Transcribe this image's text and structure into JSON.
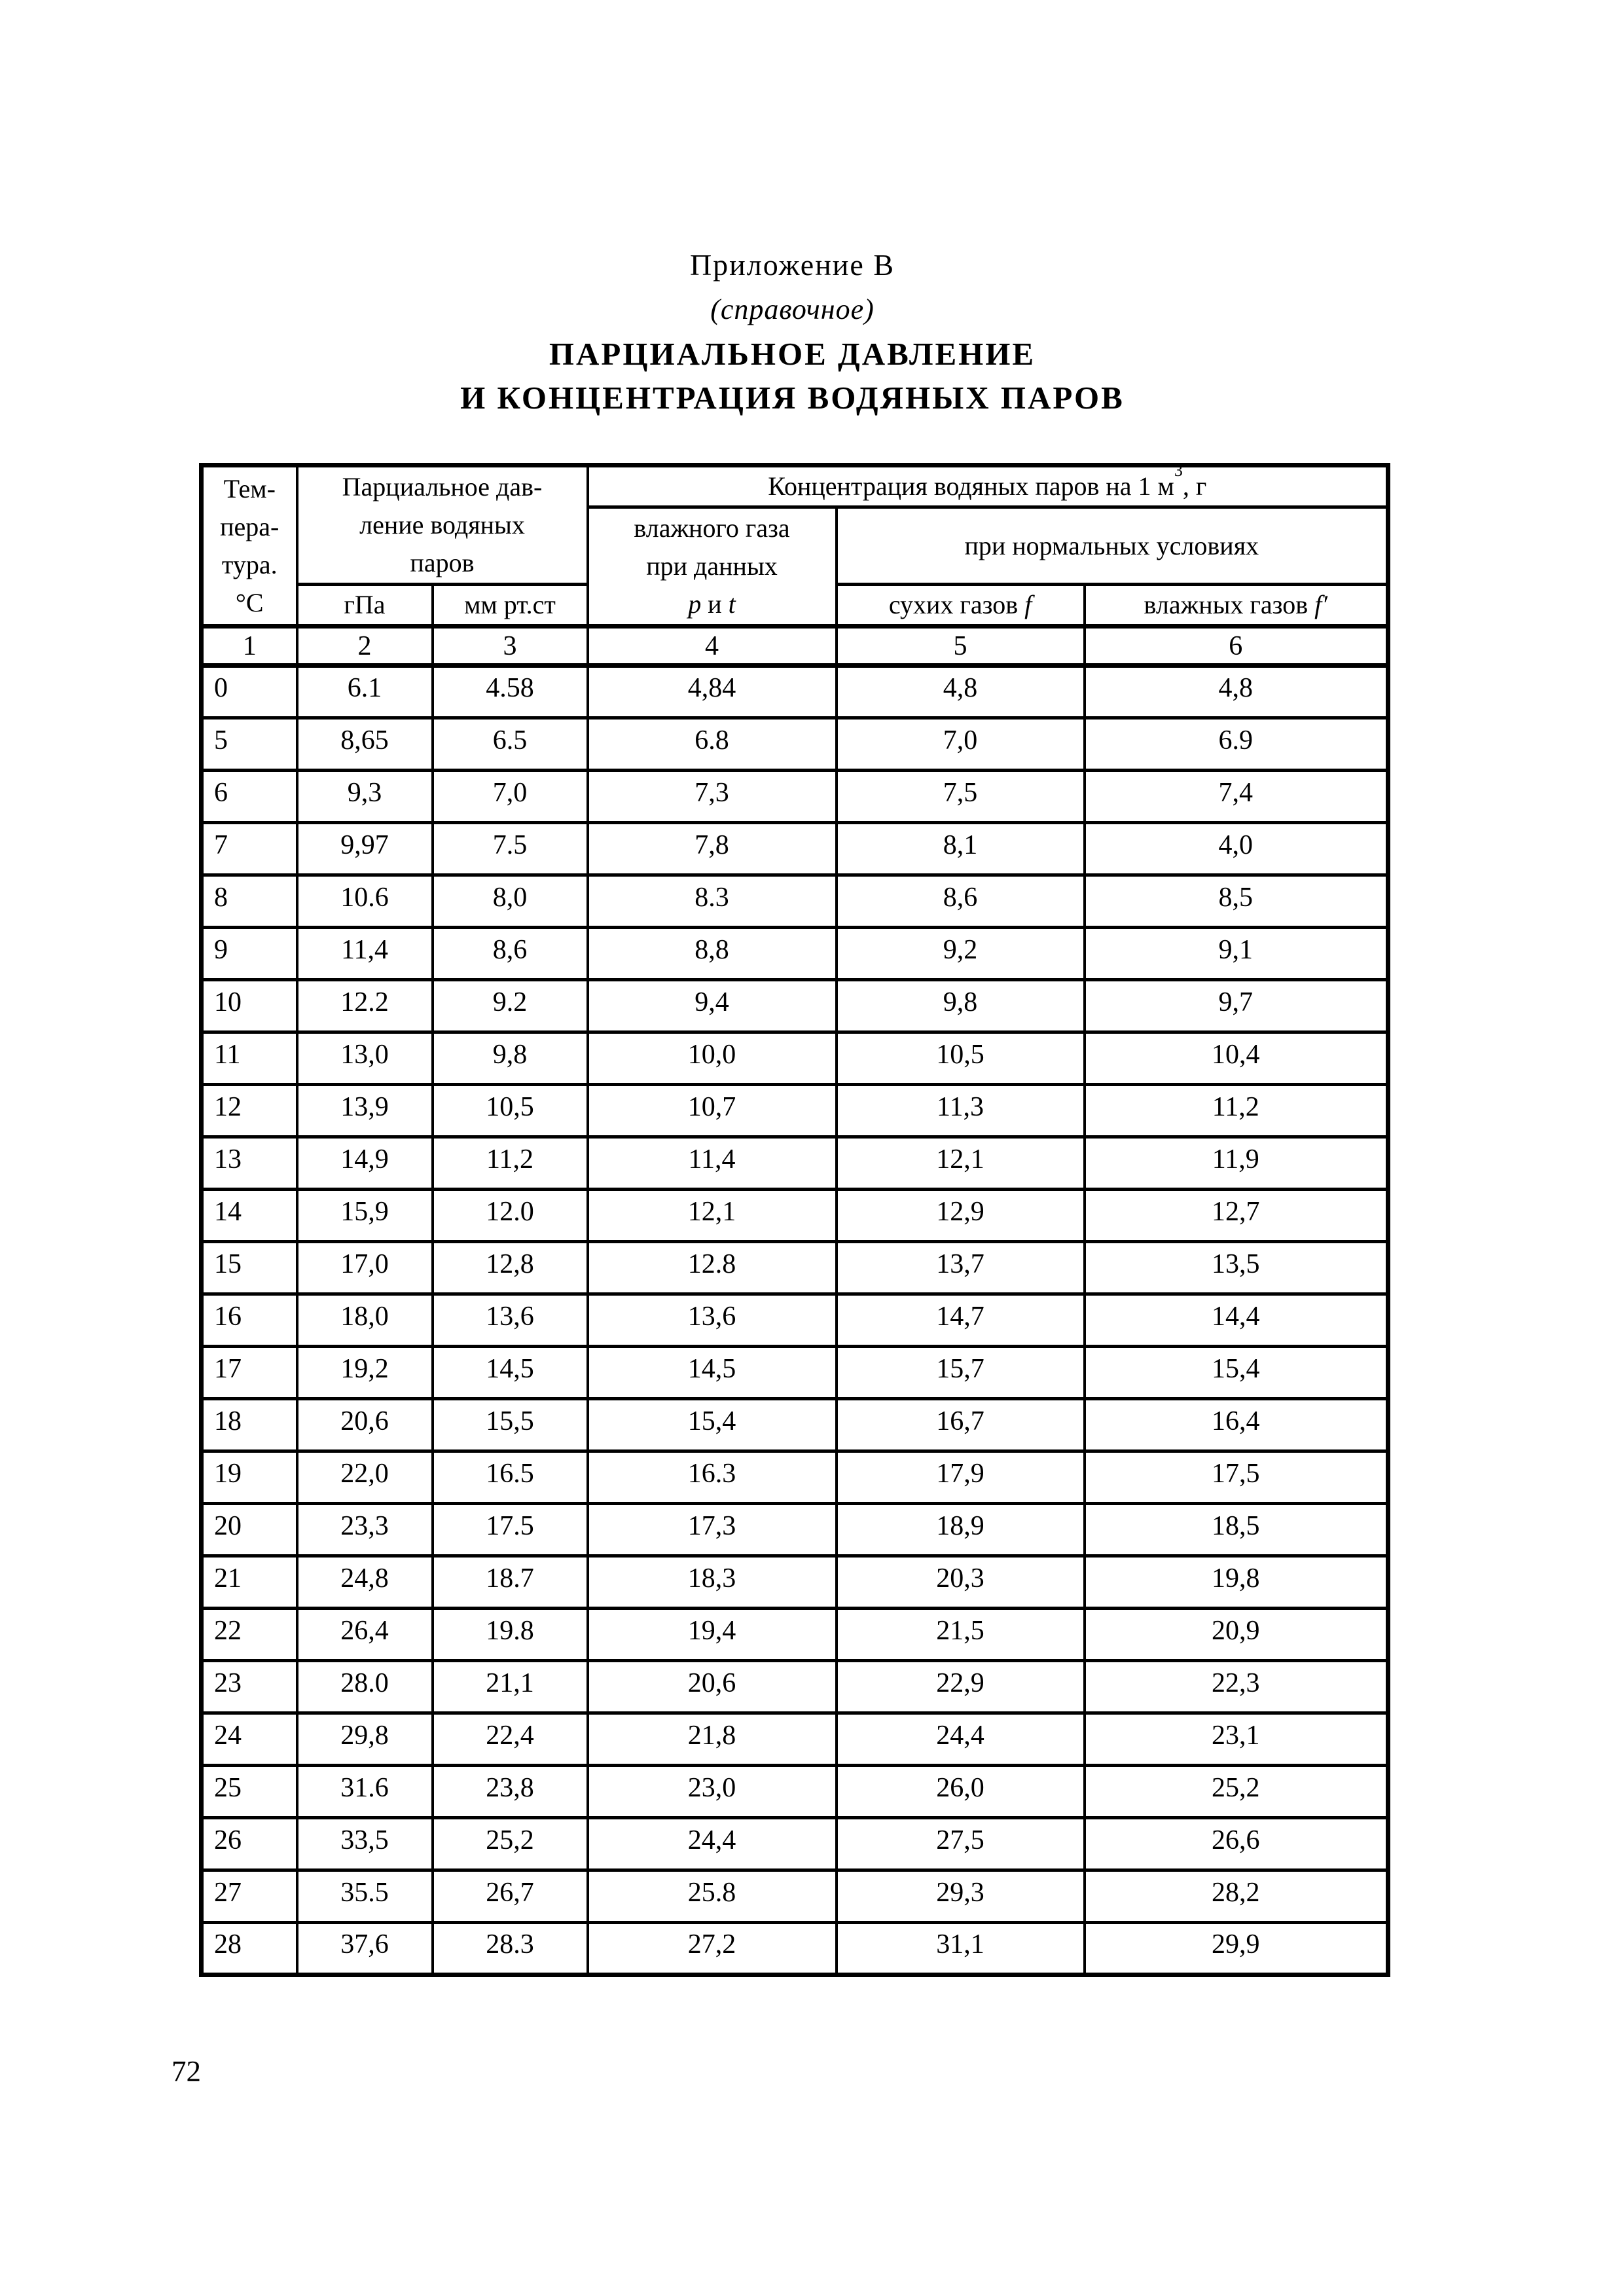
{
  "page": {
    "title_appendix": "Приложение В",
    "title_note": "(справочное)",
    "title_main_line1": "ПАРЦИАЛЬНОЕ ДАВЛЕНИЕ",
    "title_main_line2": "И КОНЦЕНТРАЦИЯ ВОДЯНЫХ ПАРОВ",
    "page_number": "72"
  },
  "table": {
    "header": {
      "col_temperature": [
        "Тем-",
        "пера-",
        "тура.",
        "°C"
      ],
      "group_partial_pressure": [
        "Парциальное дав-",
        "ление водяных",
        "паров"
      ],
      "concentration_prefix": "Концентрация водяных паров на 1 м",
      "concentration_sup": "3",
      "concentration_suffix": ", г",
      "wet_gas_line1": "влажного газа",
      "wet_gas_line2": "при данных",
      "p_symbol": "p",
      "and_word": "и",
      "t_symbol": "t",
      "group_normal_conditions": "при нормальных условиях",
      "col_hpa": "гПа",
      "col_mmhg": "мм рт.ст",
      "col_dry_gases_label": "сухих газов",
      "col_dry_gases_symbol": "f",
      "col_wet_gases_label": "влажных газов",
      "col_wet_gases_symbol": "f′"
    },
    "column_numbers": [
      "1",
      "2",
      "3",
      "4",
      "5",
      "6"
    ],
    "rows": [
      [
        "0",
        "6.1",
        "4.58",
        "4,84",
        "4,8",
        "4,8"
      ],
      [
        "5",
        "8,65",
        "6.5",
        "6.8",
        "7,0",
        "6.9"
      ],
      [
        "6",
        "9,3",
        "7,0",
        "7,3",
        "7,5",
        "7,4"
      ],
      [
        "7",
        "9,97",
        "7.5",
        "7,8",
        "8,1",
        "4,0"
      ],
      [
        "8",
        "10.6",
        "8,0",
        "8.3",
        "8,6",
        "8,5"
      ],
      [
        "9",
        "11,4",
        "8,6",
        "8,8",
        "9,2",
        "9,1"
      ],
      [
        "10",
        "12.2",
        "9.2",
        "9,4",
        "9,8",
        "9,7"
      ],
      [
        "11",
        "13,0",
        "9,8",
        "10,0",
        "10,5",
        "10,4"
      ],
      [
        "12",
        "13,9",
        "10,5",
        "10,7",
        "11,3",
        "11,2"
      ],
      [
        "13",
        "14,9",
        "11,2",
        "11,4",
        "12,1",
        "11,9"
      ],
      [
        "14",
        "15,9",
        "12.0",
        "12,1",
        "12,9",
        "12,7"
      ],
      [
        "15",
        "17,0",
        "12,8",
        "12.8",
        "13,7",
        "13,5"
      ],
      [
        "16",
        "18,0",
        "13,6",
        "13,6",
        "14,7",
        "14,4"
      ],
      [
        "17",
        "19,2",
        "14,5",
        "14,5",
        "15,7",
        "15,4"
      ],
      [
        "18",
        "20,6",
        "15,5",
        "15,4",
        "16,7",
        "16,4"
      ],
      [
        "19",
        "22,0",
        "16.5",
        "16.3",
        "17,9",
        "17,5"
      ],
      [
        "20",
        "23,3",
        "17.5",
        "17,3",
        "18,9",
        "18,5"
      ],
      [
        "21",
        "24,8",
        "18.7",
        "18,3",
        "20,3",
        "19,8"
      ],
      [
        "22",
        "26,4",
        "19.8",
        "19,4",
        "21,5",
        "20,9"
      ],
      [
        "23",
        "28.0",
        "21,1",
        "20,6",
        "22,9",
        "22,3"
      ],
      [
        "24",
        "29,8",
        "22,4",
        "21,8",
        "24,4",
        "23,1"
      ],
      [
        "25",
        "31.6",
        "23,8",
        "23,0",
        "26,0",
        "25,2"
      ],
      [
        "26",
        "33,5",
        "25,2",
        "24,4",
        "27,5",
        "26,6"
      ],
      [
        "27",
        "35.5",
        "26,7",
        "25.8",
        "29,3",
        "28,2"
      ],
      [
        "28",
        "37,6",
        "28.3",
        "27,2",
        "31,1",
        "29,9"
      ]
    ]
  }
}
